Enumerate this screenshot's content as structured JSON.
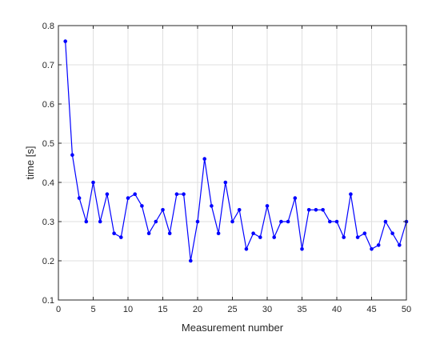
{
  "chart_data": {
    "type": "line",
    "title": "",
    "xlabel": "Measurement number",
    "ylabel": "time [s]",
    "xlim": [
      0,
      50
    ],
    "ylim": [
      0.1,
      0.8
    ],
    "xticks": [
      0,
      5,
      10,
      15,
      20,
      25,
      30,
      35,
      40,
      45,
      50
    ],
    "yticks": [
      0.1,
      0.2,
      0.3,
      0.4,
      0.5,
      0.6,
      0.7,
      0.8
    ],
    "xtick_labels": [
      "0",
      "5",
      "10",
      "15",
      "20",
      "25",
      "30",
      "35",
      "40",
      "45",
      "50"
    ],
    "ytick_labels": [
      "0.1",
      "0.2",
      "0.3",
      "0.4",
      "0.5",
      "0.6",
      "0.7",
      "0.8"
    ],
    "grid": true,
    "series": [
      {
        "color": "#0000ff",
        "marker": "dot",
        "x": [
          1,
          2,
          3,
          4,
          5,
          6,
          7,
          8,
          9,
          10,
          11,
          12,
          13,
          14,
          15,
          16,
          17,
          18,
          19,
          20,
          21,
          22,
          23,
          24,
          25,
          26,
          27,
          28,
          29,
          30,
          31,
          32,
          33,
          34,
          35,
          36,
          37,
          38,
          39,
          40,
          41,
          42,
          43,
          44,
          45,
          46,
          47,
          48,
          49,
          50
        ],
        "y": [
          0.76,
          0.47,
          0.36,
          0.3,
          0.4,
          0.3,
          0.37,
          0.27,
          0.26,
          0.36,
          0.37,
          0.34,
          0.27,
          0.3,
          0.33,
          0.27,
          0.37,
          0.37,
          0.2,
          0.3,
          0.46,
          0.34,
          0.27,
          0.4,
          0.3,
          0.33,
          0.23,
          0.27,
          0.26,
          0.34,
          0.26,
          0.3,
          0.3,
          0.36,
          0.23,
          0.33,
          0.33,
          0.33,
          0.3,
          0.3,
          0.26,
          0.37,
          0.26,
          0.27,
          0.23,
          0.24,
          0.3,
          0.27,
          0.24,
          0.3
        ]
      }
    ]
  }
}
